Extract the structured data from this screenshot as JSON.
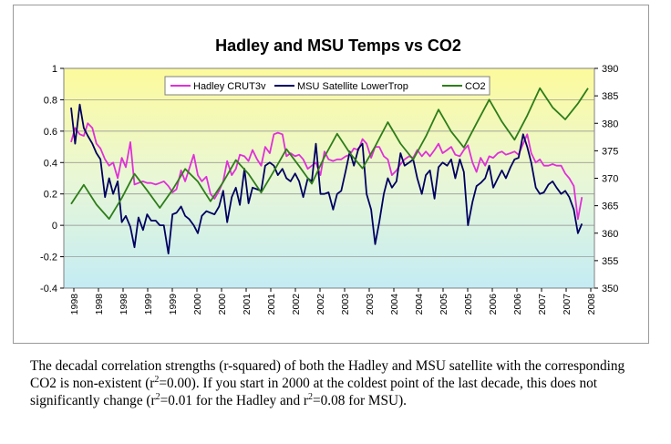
{
  "chart_data": {
    "type": "line",
    "title": "Hadley and MSU Temps vs CO2",
    "xlabel": "",
    "ylabel": "",
    "y_left_lim": [
      -0.4,
      1.0
    ],
    "y_left_ticks": [
      "-0.4",
      "-0.2",
      "0",
      "0.2",
      "0.4",
      "0.6",
      "0.8",
      "1"
    ],
    "y_right_lim": [
      350,
      390
    ],
    "y_right_ticks": [
      "350",
      "355",
      "360",
      "365",
      "370",
      "375",
      "380",
      "385",
      "390"
    ],
    "x_tick_labels": [
      "1998",
      "1998",
      "1998",
      "1999",
      "1999",
      "2000",
      "2000",
      "2001",
      "2001",
      "2002",
      "2002",
      "2003",
      "2003",
      "2004",
      "2004",
      "2005",
      "2005",
      "2006",
      "2006",
      "2007",
      "2007",
      "2008"
    ],
    "x_range": [
      1998.0,
      2008.2
    ],
    "grid": true,
    "legend_placement": "top",
    "background": "vertical gradient yellow to light cyan",
    "series": [
      {
        "name": "Hadley CRUT3v",
        "axis": "left",
        "color": "#e030d8",
        "points": [
          [
            1998.0,
            0.53
          ],
          [
            1998.08,
            0.62
          ],
          [
            1998.17,
            0.58
          ],
          [
            1998.25,
            0.57
          ],
          [
            1998.33,
            0.65
          ],
          [
            1998.42,
            0.62
          ],
          [
            1998.5,
            0.52
          ],
          [
            1998.58,
            0.49
          ],
          [
            1998.67,
            0.42
          ],
          [
            1998.75,
            0.38
          ],
          [
            1998.83,
            0.4
          ],
          [
            1998.92,
            0.3
          ],
          [
            1999.0,
            0.43
          ],
          [
            1999.08,
            0.37
          ],
          [
            1999.17,
            0.53
          ],
          [
            1999.25,
            0.26
          ],
          [
            1999.33,
            0.27
          ],
          [
            1999.42,
            0.28
          ],
          [
            1999.5,
            0.27
          ],
          [
            1999.58,
            0.27
          ],
          [
            1999.67,
            0.26
          ],
          [
            1999.75,
            0.27
          ],
          [
            1999.83,
            0.28
          ],
          [
            1999.92,
            0.25
          ],
          [
            2000.0,
            0.21
          ],
          [
            2000.08,
            0.23
          ],
          [
            2000.17,
            0.35
          ],
          [
            2000.25,
            0.28
          ],
          [
            2000.33,
            0.36
          ],
          [
            2000.42,
            0.45
          ],
          [
            2000.5,
            0.32
          ],
          [
            2000.58,
            0.28
          ],
          [
            2000.67,
            0.31
          ],
          [
            2000.75,
            0.2
          ],
          [
            2000.83,
            0.17
          ],
          [
            2000.92,
            0.22
          ],
          [
            2001.0,
            0.28
          ],
          [
            2001.08,
            0.41
          ],
          [
            2001.17,
            0.32
          ],
          [
            2001.25,
            0.36
          ],
          [
            2001.33,
            0.45
          ],
          [
            2001.42,
            0.44
          ],
          [
            2001.5,
            0.41
          ],
          [
            2001.58,
            0.48
          ],
          [
            2001.67,
            0.42
          ],
          [
            2001.75,
            0.38
          ],
          [
            2001.83,
            0.5
          ],
          [
            2001.92,
            0.46
          ],
          [
            2002.0,
            0.58
          ],
          [
            2002.08,
            0.59
          ],
          [
            2002.17,
            0.58
          ],
          [
            2002.25,
            0.44
          ],
          [
            2002.33,
            0.46
          ],
          [
            2002.42,
            0.44
          ],
          [
            2002.5,
            0.45
          ],
          [
            2002.58,
            0.42
          ],
          [
            2002.67,
            0.36
          ],
          [
            2002.75,
            0.38
          ],
          [
            2002.83,
            0.4
          ],
          [
            2002.92,
            0.32
          ],
          [
            2003.0,
            0.47
          ],
          [
            2003.08,
            0.42
          ],
          [
            2003.17,
            0.41
          ],
          [
            2003.25,
            0.42
          ],
          [
            2003.33,
            0.42
          ],
          [
            2003.42,
            0.44
          ],
          [
            2003.5,
            0.45
          ],
          [
            2003.58,
            0.49
          ],
          [
            2003.67,
            0.48
          ],
          [
            2003.75,
            0.55
          ],
          [
            2003.83,
            0.52
          ],
          [
            2003.92,
            0.43
          ],
          [
            2004.0,
            0.5
          ],
          [
            2004.08,
            0.5
          ],
          [
            2004.17,
            0.44
          ],
          [
            2004.25,
            0.42
          ],
          [
            2004.33,
            0.32
          ],
          [
            2004.42,
            0.35
          ],
          [
            2004.5,
            0.39
          ],
          [
            2004.58,
            0.42
          ],
          [
            2004.67,
            0.44
          ],
          [
            2004.75,
            0.43
          ],
          [
            2004.83,
            0.48
          ],
          [
            2004.92,
            0.44
          ],
          [
            2005.0,
            0.47
          ],
          [
            2005.08,
            0.44
          ],
          [
            2005.17,
            0.48
          ],
          [
            2005.25,
            0.52
          ],
          [
            2005.33,
            0.46
          ],
          [
            2005.42,
            0.48
          ],
          [
            2005.5,
            0.5
          ],
          [
            2005.58,
            0.45
          ],
          [
            2005.67,
            0.44
          ],
          [
            2005.75,
            0.48
          ],
          [
            2005.83,
            0.51
          ],
          [
            2005.92,
            0.4
          ],
          [
            2006.0,
            0.34
          ],
          [
            2006.08,
            0.43
          ],
          [
            2006.17,
            0.38
          ],
          [
            2006.25,
            0.44
          ],
          [
            2006.33,
            0.43
          ],
          [
            2006.42,
            0.46
          ],
          [
            2006.5,
            0.47
          ],
          [
            2006.58,
            0.45
          ],
          [
            2006.67,
            0.46
          ],
          [
            2006.75,
            0.47
          ],
          [
            2006.83,
            0.45
          ],
          [
            2006.92,
            0.52
          ],
          [
            2007.0,
            0.58
          ],
          [
            2007.08,
            0.46
          ],
          [
            2007.17,
            0.4
          ],
          [
            2007.25,
            0.42
          ],
          [
            2007.33,
            0.38
          ],
          [
            2007.42,
            0.38
          ],
          [
            2007.5,
            0.39
          ],
          [
            2007.58,
            0.38
          ],
          [
            2007.67,
            0.38
          ],
          [
            2007.75,
            0.33
          ],
          [
            2007.83,
            0.3
          ],
          [
            2007.92,
            0.25
          ],
          [
            2008.0,
            0.04
          ],
          [
            2008.08,
            0.18
          ]
        ]
      },
      {
        "name": "MSU Satellite LowerTrop",
        "axis": "left",
        "color": "#000060",
        "points": [
          [
            1998.0,
            0.75
          ],
          [
            1998.08,
            0.52
          ],
          [
            1998.17,
            0.77
          ],
          [
            1998.25,
            0.62
          ],
          [
            1998.33,
            0.57
          ],
          [
            1998.42,
            0.52
          ],
          [
            1998.5,
            0.46
          ],
          [
            1998.58,
            0.42
          ],
          [
            1998.67,
            0.18
          ],
          [
            1998.75,
            0.3
          ],
          [
            1998.83,
            0.2
          ],
          [
            1998.92,
            0.28
          ],
          [
            1999.0,
            0.02
          ],
          [
            1999.08,
            0.06
          ],
          [
            1999.17,
            -0.01
          ],
          [
            1999.25,
            -0.14
          ],
          [
            1999.33,
            0.05
          ],
          [
            1999.42,
            -0.03
          ],
          [
            1999.5,
            0.07
          ],
          [
            1999.58,
            0.03
          ],
          [
            1999.67,
            0.03
          ],
          [
            1999.75,
            0.0
          ],
          [
            1999.83,
            0.0
          ],
          [
            1999.92,
            -0.18
          ],
          [
            2000.0,
            0.07
          ],
          [
            2000.08,
            0.08
          ],
          [
            2000.17,
            0.12
          ],
          [
            2000.25,
            0.06
          ],
          [
            2000.33,
            0.04
          ],
          [
            2000.42,
            0.0
          ],
          [
            2000.5,
            -0.05
          ],
          [
            2000.58,
            0.06
          ],
          [
            2000.67,
            0.09
          ],
          [
            2000.75,
            0.08
          ],
          [
            2000.83,
            0.07
          ],
          [
            2000.92,
            0.12
          ],
          [
            2001.0,
            0.22
          ],
          [
            2001.08,
            0.02
          ],
          [
            2001.17,
            0.18
          ],
          [
            2001.25,
            0.24
          ],
          [
            2001.33,
            0.13
          ],
          [
            2001.42,
            0.36
          ],
          [
            2001.5,
            0.14
          ],
          [
            2001.58,
            0.24
          ],
          [
            2001.67,
            0.23
          ],
          [
            2001.75,
            0.22
          ],
          [
            2001.83,
            0.38
          ],
          [
            2001.92,
            0.4
          ],
          [
            2002.0,
            0.38
          ],
          [
            2002.08,
            0.32
          ],
          [
            2002.17,
            0.36
          ],
          [
            2002.25,
            0.3
          ],
          [
            2002.33,
            0.28
          ],
          [
            2002.42,
            0.33
          ],
          [
            2002.5,
            0.28
          ],
          [
            2002.58,
            0.18
          ],
          [
            2002.67,
            0.3
          ],
          [
            2002.75,
            0.28
          ],
          [
            2002.83,
            0.52
          ],
          [
            2002.92,
            0.2
          ],
          [
            2003.0,
            0.2
          ],
          [
            2003.08,
            0.21
          ],
          [
            2003.17,
            0.1
          ],
          [
            2003.25,
            0.2
          ],
          [
            2003.33,
            0.22
          ],
          [
            2003.42,
            0.35
          ],
          [
            2003.5,
            0.47
          ],
          [
            2003.58,
            0.38
          ],
          [
            2003.67,
            0.49
          ],
          [
            2003.75,
            0.52
          ],
          [
            2003.83,
            0.2
          ],
          [
            2003.92,
            0.1
          ],
          [
            2004.0,
            -0.12
          ],
          [
            2004.08,
            0.02
          ],
          [
            2004.17,
            0.2
          ],
          [
            2004.25,
            0.3
          ],
          [
            2004.33,
            0.24
          ],
          [
            2004.42,
            0.28
          ],
          [
            2004.5,
            0.46
          ],
          [
            2004.58,
            0.38
          ],
          [
            2004.67,
            0.4
          ],
          [
            2004.75,
            0.42
          ],
          [
            2004.83,
            0.3
          ],
          [
            2004.92,
            0.2
          ],
          [
            2005.0,
            0.32
          ],
          [
            2005.08,
            0.35
          ],
          [
            2005.17,
            0.17
          ],
          [
            2005.25,
            0.37
          ],
          [
            2005.33,
            0.4
          ],
          [
            2005.42,
            0.38
          ],
          [
            2005.5,
            0.42
          ],
          [
            2005.58,
            0.3
          ],
          [
            2005.67,
            0.42
          ],
          [
            2005.75,
            0.34
          ],
          [
            2005.83,
            0.0
          ],
          [
            2005.92,
            0.15
          ],
          [
            2006.0,
            0.25
          ],
          [
            2006.08,
            0.27
          ],
          [
            2006.17,
            0.3
          ],
          [
            2006.25,
            0.38
          ],
          [
            2006.33,
            0.24
          ],
          [
            2006.42,
            0.3
          ],
          [
            2006.5,
            0.35
          ],
          [
            2006.58,
            0.3
          ],
          [
            2006.67,
            0.37
          ],
          [
            2006.75,
            0.42
          ],
          [
            2006.83,
            0.43
          ],
          [
            2006.92,
            0.58
          ],
          [
            2007.0,
            0.5
          ],
          [
            2007.08,
            0.4
          ],
          [
            2007.17,
            0.24
          ],
          [
            2007.25,
            0.2
          ],
          [
            2007.33,
            0.21
          ],
          [
            2007.42,
            0.26
          ],
          [
            2007.5,
            0.28
          ],
          [
            2007.58,
            0.24
          ],
          [
            2007.67,
            0.2
          ],
          [
            2007.75,
            0.22
          ],
          [
            2007.83,
            0.18
          ],
          [
            2007.92,
            0.1
          ],
          [
            2008.0,
            -0.05
          ],
          [
            2008.08,
            0.01
          ]
        ]
      },
      {
        "name": "CO2",
        "axis": "right",
        "color": "#2e7d1a",
        "points": [
          [
            1998.0,
            365.3
          ],
          [
            1998.25,
            368.8
          ],
          [
            1998.5,
            365.2
          ],
          [
            1998.75,
            362.6
          ],
          [
            1999.0,
            366.4
          ],
          [
            1999.25,
            370.8
          ],
          [
            1999.5,
            367.8
          ],
          [
            1999.75,
            364.6
          ],
          [
            2000.0,
            367.9
          ],
          [
            2000.25,
            371.7
          ],
          [
            2000.5,
            369.4
          ],
          [
            2000.75,
            365.8
          ],
          [
            2001.0,
            369.3
          ],
          [
            2001.25,
            373.3
          ],
          [
            2001.5,
            370.8
          ],
          [
            2001.75,
            367.4
          ],
          [
            2002.0,
            371.3
          ],
          [
            2002.25,
            375.3
          ],
          [
            2002.5,
            372.2
          ],
          [
            2002.75,
            369.0
          ],
          [
            2003.0,
            373.9
          ],
          [
            2003.25,
            378.1
          ],
          [
            2003.5,
            374.6
          ],
          [
            2003.75,
            371.8
          ],
          [
            2004.0,
            375.8
          ],
          [
            2004.25,
            380.2
          ],
          [
            2004.5,
            376.3
          ],
          [
            2004.75,
            373.4
          ],
          [
            2005.0,
            377.6
          ],
          [
            2005.25,
            382.5
          ],
          [
            2005.5,
            378.5
          ],
          [
            2005.75,
            375.6
          ],
          [
            2006.0,
            380.0
          ],
          [
            2006.25,
            384.3
          ],
          [
            2006.5,
            380.3
          ],
          [
            2006.75,
            377.0
          ],
          [
            2007.0,
            381.4
          ],
          [
            2007.25,
            386.4
          ],
          [
            2007.5,
            382.9
          ],
          [
            2007.75,
            380.7
          ],
          [
            2008.0,
            383.6
          ],
          [
            2008.2,
            386.4
          ]
        ]
      }
    ]
  },
  "caption": {
    "part1": "The decadal correlation strengths (r-squared) of both the Hadley and MSU satellite with the corresponding CO2 is non-existent (r",
    "sup1": "2",
    "part2": "=0.00). If you start in 2000 at the coldest point of the last decade, this does not significantly change (r",
    "sup2": "2",
    "part3": "=0.01 for the Hadley and r",
    "sup3": "2",
    "part4": "=0.08 for MSU)."
  }
}
